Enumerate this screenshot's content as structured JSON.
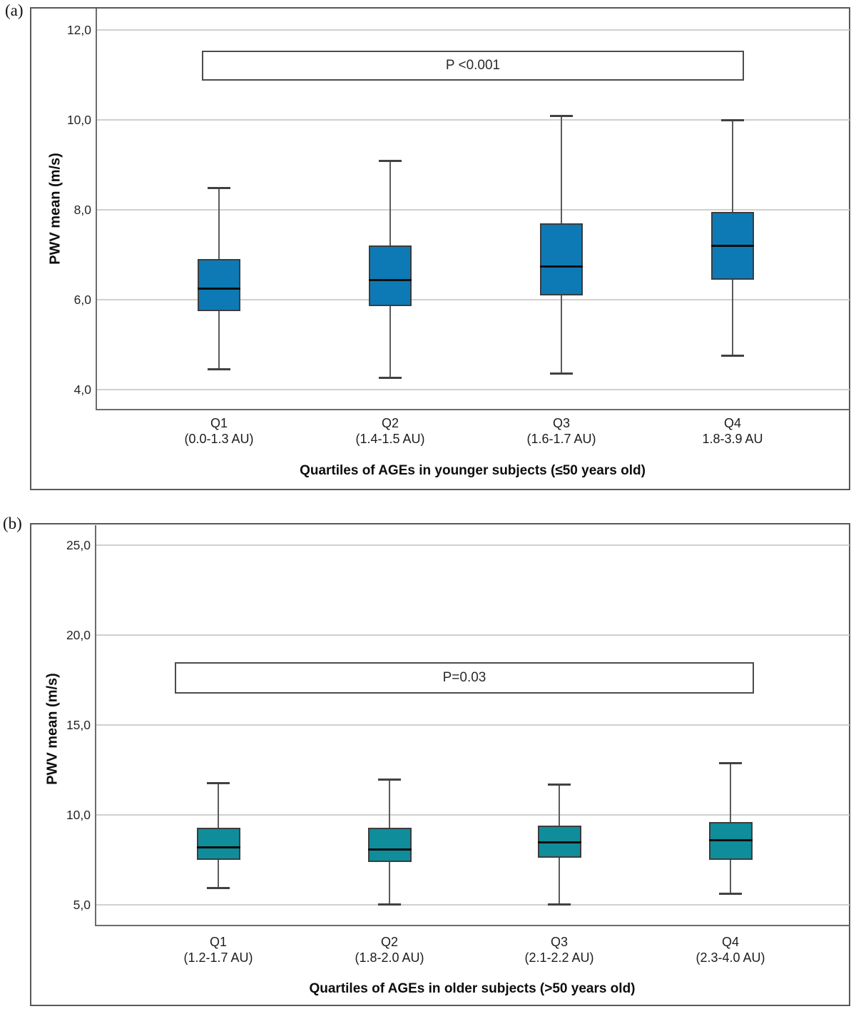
{
  "figure": {
    "panel_a_letter": "(a)",
    "panel_b_letter": "(b)"
  },
  "chart_data": [
    {
      "type": "boxplot",
      "panel": "a",
      "ylabel": "PWV mean (m/s)",
      "xlabel": "Quartiles of AGEs in younger subjects (≤50 years old)",
      "annotation": "P <0.001",
      "box_color": "#0d7ab5",
      "ylim": [
        3.57,
        12.48
      ],
      "grid": true,
      "yticks": [
        {
          "label": "12,0",
          "value": 12
        },
        {
          "label": "10,0",
          "value": 10
        },
        {
          "label": "8,0",
          "value": 8
        },
        {
          "label": "6,0",
          "value": 6
        },
        {
          "label": "4,0",
          "value": 4
        }
      ],
      "categories": [
        {
          "label": "Q1",
          "sublabel": "(0.0-1.3 AU)"
        },
        {
          "label": "Q2",
          "sublabel": "(1.4-1.5 AU)"
        },
        {
          "label": "Q3",
          "sublabel": "(1.6-1.7 AU)"
        },
        {
          "label": "Q4",
          "sublabel": "1.8-3.9 AU"
        }
      ],
      "boxes": [
        {
          "low": 4.45,
          "q1": 5.75,
          "median": 6.25,
          "q3": 6.9,
          "high": 8.5
        },
        {
          "low": 4.25,
          "q1": 5.85,
          "median": 6.45,
          "q3": 7.2,
          "high": 9.1
        },
        {
          "low": 4.35,
          "q1": 6.1,
          "median": 6.75,
          "q3": 7.7,
          "high": 10.1
        },
        {
          "low": 4.75,
          "q1": 6.45,
          "median": 7.2,
          "q3": 7.95,
          "high": 10.0
        }
      ]
    },
    {
      "type": "boxplot",
      "panel": "b",
      "ylabel": "PWV mean (m/s)",
      "xlabel": "Quartiles of AGEs in older subjects (>50 years old)",
      "annotation": "P=0.03",
      "box_color": "#0f8d9b",
      "ylim": [
        3.89,
        26.11
      ],
      "grid": true,
      "yticks": [
        {
          "label": "25,0",
          "value": 25
        },
        {
          "label": "20,0",
          "value": 20
        },
        {
          "label": "15,0",
          "value": 15
        },
        {
          "label": "10,0",
          "value": 10
        },
        {
          "label": "5,0",
          "value": 5
        }
      ],
      "categories": [
        {
          "label": "Q1",
          "sublabel": "(1.2-1.7 AU)"
        },
        {
          "label": "Q2",
          "sublabel": "(1.8-2.0 AU)"
        },
        {
          "label": "Q3",
          "sublabel": "(2.1-2.2 AU)"
        },
        {
          "label": "Q4",
          "sublabel": "(2.3-4.0 AU)"
        }
      ],
      "boxes": [
        {
          "low": 5.9,
          "q1": 7.5,
          "median": 8.2,
          "q3": 9.3,
          "high": 11.8
        },
        {
          "low": 5.0,
          "q1": 7.4,
          "median": 8.1,
          "q3": 9.3,
          "high": 12.0
        },
        {
          "low": 5.0,
          "q1": 7.6,
          "median": 8.5,
          "q3": 9.4,
          "high": 11.7
        },
        {
          "low": 5.6,
          "q1": 7.5,
          "median": 8.6,
          "q3": 9.6,
          "high": 12.9
        }
      ]
    }
  ]
}
